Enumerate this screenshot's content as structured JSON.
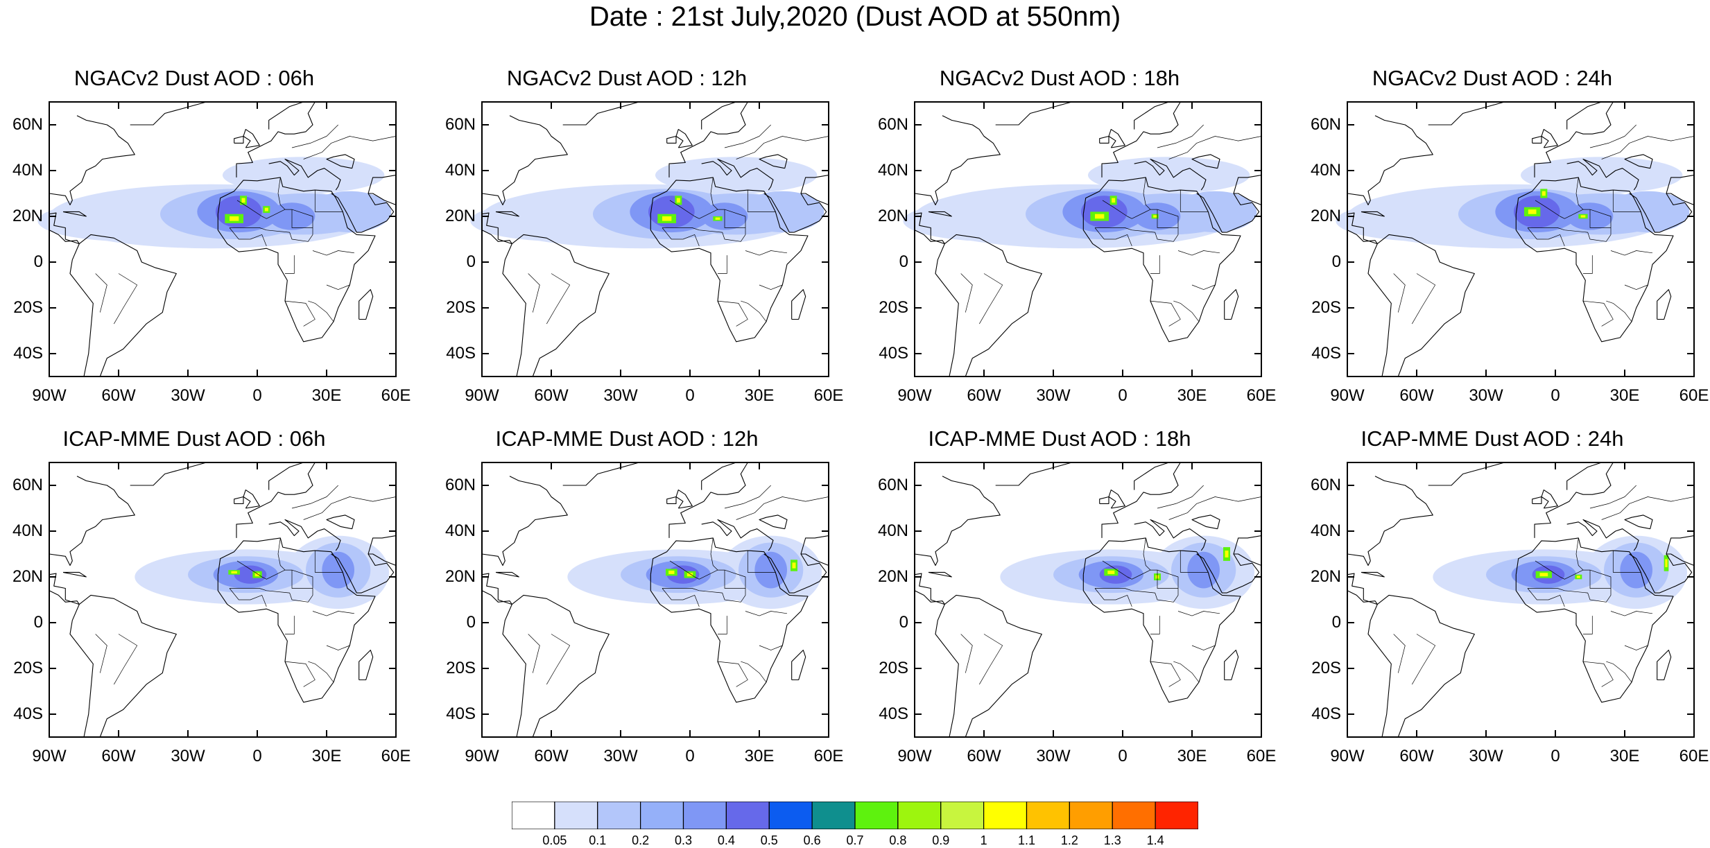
{
  "title": "Date : 21st July,2020 (Dust AOD at 550nm)",
  "chart_data": {
    "type": "heatmap",
    "variable": "Dust AOD at 550nm",
    "domain_lon": [
      -90,
      60
    ],
    "domain_lat": [
      -50,
      70
    ],
    "lat_ticks": [
      "60N",
      "40N",
      "20N",
      "0",
      "20S",
      "40S"
    ],
    "lon_ticks": [
      "90W",
      "60W",
      "30W",
      "0",
      "30E",
      "60E"
    ],
    "colorbar": {
      "colors": [
        "#ffffff",
        "#d6e0fb",
        "#b3c6fa",
        "#95b0f9",
        "#7f97f5",
        "#6669ea",
        "#0c5cf0",
        "#0f8f8e",
        "#5ef20e",
        "#9df50e",
        "#c8f53e",
        "#ffff00",
        "#ffc200",
        "#ff9e00",
        "#ff6f00",
        "#ff2400"
      ],
      "labels": [
        "0.05",
        "0.1",
        "0.2",
        "0.3",
        "0.4",
        "0.5",
        "0.6",
        "0.7",
        "0.8",
        "0.9",
        "1",
        "1.1",
        "1.2",
        "1.3",
        "1.4"
      ]
    },
    "panels": [
      {
        "model": "NGACv2",
        "hour": "06h",
        "title": "NGACv2 Dust AOD : 06h",
        "peak_lon": -8,
        "peak_lat": 22,
        "peak_aod": 0.9
      },
      {
        "model": "NGACv2",
        "hour": "12h",
        "title": "NGACv2 Dust AOD : 12h",
        "peak_lon": -8,
        "peak_lat": 22,
        "peak_aod": 0.9
      },
      {
        "model": "NGACv2",
        "hour": "18h",
        "title": "NGACv2 Dust AOD : 18h",
        "peak_lon": -8,
        "peak_lat": 22,
        "peak_aod": 0.9
      },
      {
        "model": "NGACv2",
        "hour": "24h",
        "title": "NGACv2 Dust AOD : 24h",
        "peak_lon": -8,
        "peak_lat": 22,
        "peak_aod": 0.9
      },
      {
        "model": "ICAP-MME",
        "hour": "06h",
        "title": "ICAP-MME Dust AOD : 06h",
        "peak_lon": -2,
        "peak_lat": 21,
        "peak_aod": 0.9
      },
      {
        "model": "ICAP-MME",
        "hour": "12h",
        "title": "ICAP-MME Dust AOD : 12h",
        "peak_lon": -1,
        "peak_lat": 21,
        "peak_aod": 0.9
      },
      {
        "model": "ICAP-MME",
        "hour": "18h",
        "title": "ICAP-MME Dust AOD : 18h",
        "peak_lon": -4,
        "peak_lat": 20,
        "peak_aod": 0.9
      },
      {
        "model": "ICAP-MME",
        "hour": "24h",
        "title": "ICAP-MME Dust AOD : 24h",
        "peak_lon": -6,
        "peak_lat": 20,
        "peak_aod": 0.9
      }
    ]
  }
}
